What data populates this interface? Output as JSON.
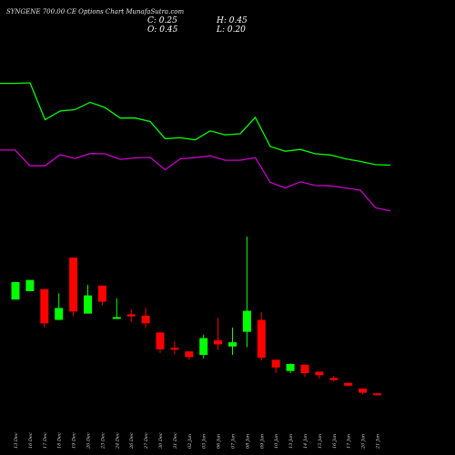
{
  "chart_data": {
    "type": "candlestick",
    "title": "SYNGENE 700.00  CE Options  Chart MunafaSutra.com",
    "ohlc_summary": {
      "c_label": "C: 0.25",
      "h_label": "H: 0.45",
      "o_label": "O: 0.45",
      "l_label": "L: 0.20"
    },
    "colors": {
      "up": "#00ff00",
      "down": "#ff0000",
      "line_upper": "#00ff00",
      "line_lower": "#cc00cc",
      "background": "#000000"
    },
    "candles": [
      {
        "date": "13 Dec",
        "open": 17.0,
        "high": 19.5,
        "low": 17.0,
        "close": 19.5
      },
      {
        "date": "16 Dec",
        "open": 18.2,
        "high": 19.8,
        "low": 18.2,
        "close": 19.8
      },
      {
        "date": "17 Dec",
        "open": 18.5,
        "high": 18.5,
        "low": 13.0,
        "close": 13.6
      },
      {
        "date": "18 Dec",
        "open": 14.1,
        "high": 17.9,
        "low": 14.1,
        "close": 15.8
      },
      {
        "date": "19 Dec",
        "open": 23.0,
        "high": 23.0,
        "low": 14.6,
        "close": 15.3
      },
      {
        "date": "20 Dec",
        "open": 15.0,
        "high": 19.1,
        "low": 15.0,
        "close": 17.6
      },
      {
        "date": "23 Dec",
        "open": 19.0,
        "high": 19.0,
        "low": 16.2,
        "close": 16.7
      },
      {
        "date": "24 Dec",
        "open": 14.3,
        "high": 17.2,
        "low": 14.3,
        "close": 14.5
      },
      {
        "date": "26 Dec",
        "open": 14.9,
        "high": 15.6,
        "low": 13.8,
        "close": 14.6
      },
      {
        "date": "27 Dec",
        "open": 14.7,
        "high": 15.8,
        "low": 13.0,
        "close": 13.6
      },
      {
        "date": "30 Dec",
        "open": 12.3,
        "high": 12.3,
        "low": 9.4,
        "close": 9.9
      },
      {
        "date": "31 Dec",
        "open": 10.1,
        "high": 11.0,
        "low": 9.2,
        "close": 9.9
      },
      {
        "date": "02 Jan",
        "open": 9.6,
        "high": 9.6,
        "low": 8.4,
        "close": 8.8
      },
      {
        "date": "03 Jan",
        "open": 9.1,
        "high": 12.0,
        "low": 8.6,
        "close": 11.5
      },
      {
        "date": "06 Jan",
        "open": 11.2,
        "high": 14.4,
        "low": 9.8,
        "close": 10.6
      },
      {
        "date": "07 Jan",
        "open": 10.3,
        "high": 13.0,
        "low": 9.1,
        "close": 10.9
      },
      {
        "date": "08 Jan",
        "open": 12.4,
        "high": 26.0,
        "low": 10.2,
        "close": 15.4
      },
      {
        "date": "09 Jan",
        "open": 14.1,
        "high": 15.2,
        "low": 8.3,
        "close": 8.7
      },
      {
        "date": "10 Jan",
        "open": 8.4,
        "high": 8.4,
        "low": 6.5,
        "close": 7.3
      },
      {
        "date": "13 Jan",
        "open": 6.8,
        "high": 7.9,
        "low": 6.5,
        "close": 7.8
      },
      {
        "date": "14 Jan",
        "open": 7.7,
        "high": 7.7,
        "low": 6.0,
        "close": 6.5
      },
      {
        "date": "15 Jan",
        "open": 6.7,
        "high": 6.7,
        "low": 5.7,
        "close": 6.2
      },
      {
        "date": "16 Jan",
        "open": 5.8,
        "high": 6.1,
        "low": 5.3,
        "close": 5.5
      },
      {
        "date": "17 Jan",
        "open": 5.1,
        "high": 5.1,
        "low": 4.6,
        "close": 4.7
      },
      {
        "date": "20 Jan",
        "open": 4.3,
        "high": 4.3,
        "low": 3.5,
        "close": 3.7
      },
      {
        "date": "21 Jan",
        "open": 3.6,
        "high": 3.6,
        "low": 3.3,
        "close": 3.4
      }
    ],
    "line_upper": [
      92.5,
      92.5,
      92.7,
      80.0,
      83.0,
      83.5,
      86.0,
      84.2,
      80.6,
      80.6,
      79.4,
      73.5,
      73.8,
      73.1,
      76.2,
      74.8,
      75.2,
      80.8,
      70.8,
      69.2,
      69.8,
      68.3,
      67.9,
      66.6,
      65.7,
      64.6,
      64.4
    ],
    "line_lower": [
      69.6,
      69.6,
      64.2,
      64.2,
      68.0,
      66.7,
      68.4,
      68.3,
      66.4,
      66.9,
      67.1,
      62.8,
      66.6,
      67.0,
      67.6,
      66.1,
      66.1,
      67.0,
      58.5,
      56.6,
      58.7,
      57.4,
      57.3,
      56.6,
      55.8,
      49.8,
      48.7
    ]
  }
}
